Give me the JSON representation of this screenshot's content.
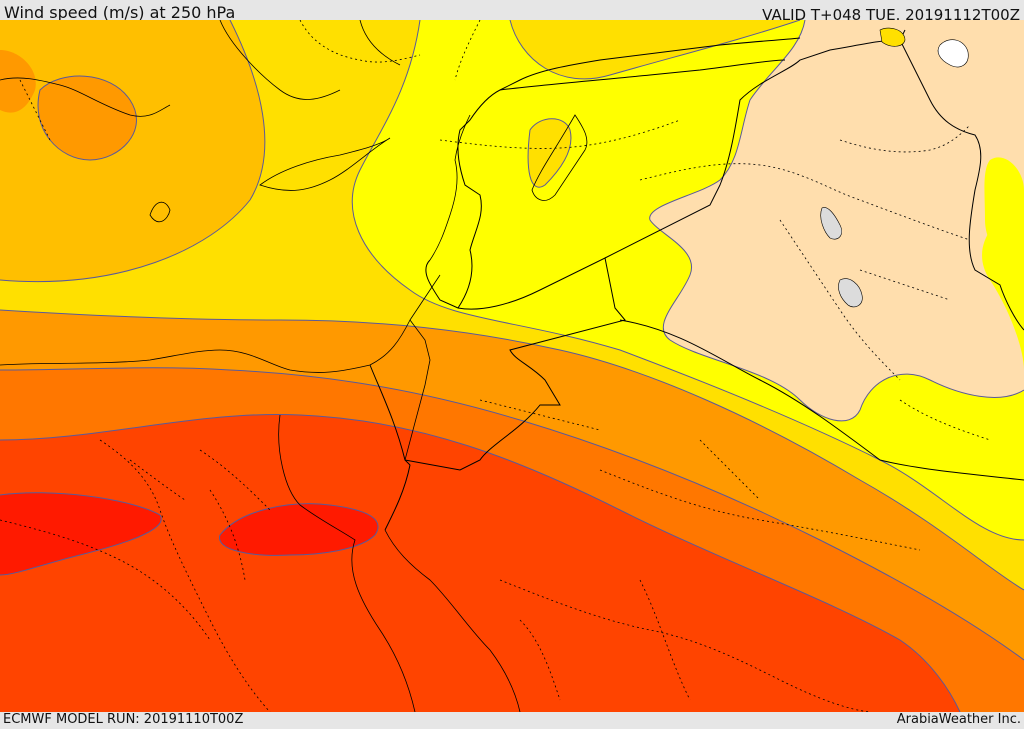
{
  "header": {
    "title": "Wind speed (m/s) at 250 hPa",
    "valid": "VALID T+048 TUE. 20191112T00Z"
  },
  "footer": {
    "model_run": "ECMWF MODEL RUN: 20191110T00Z",
    "credit": "ArabiaWeather Inc."
  },
  "map": {
    "colors": {
      "weak": "#ffffff",
      "band_1": "#ffdead",
      "band_2": "#ffff00",
      "band_3": "#ffe000",
      "band_4": "#ffbf00",
      "band_5": "#ff9900",
      "band_6": "#ff7700",
      "band_7": "#ff4400",
      "band_8": "#ff1a00",
      "lake": "#dcdcdc",
      "contour": "#5a5a9a",
      "border": "#000000"
    }
  }
}
